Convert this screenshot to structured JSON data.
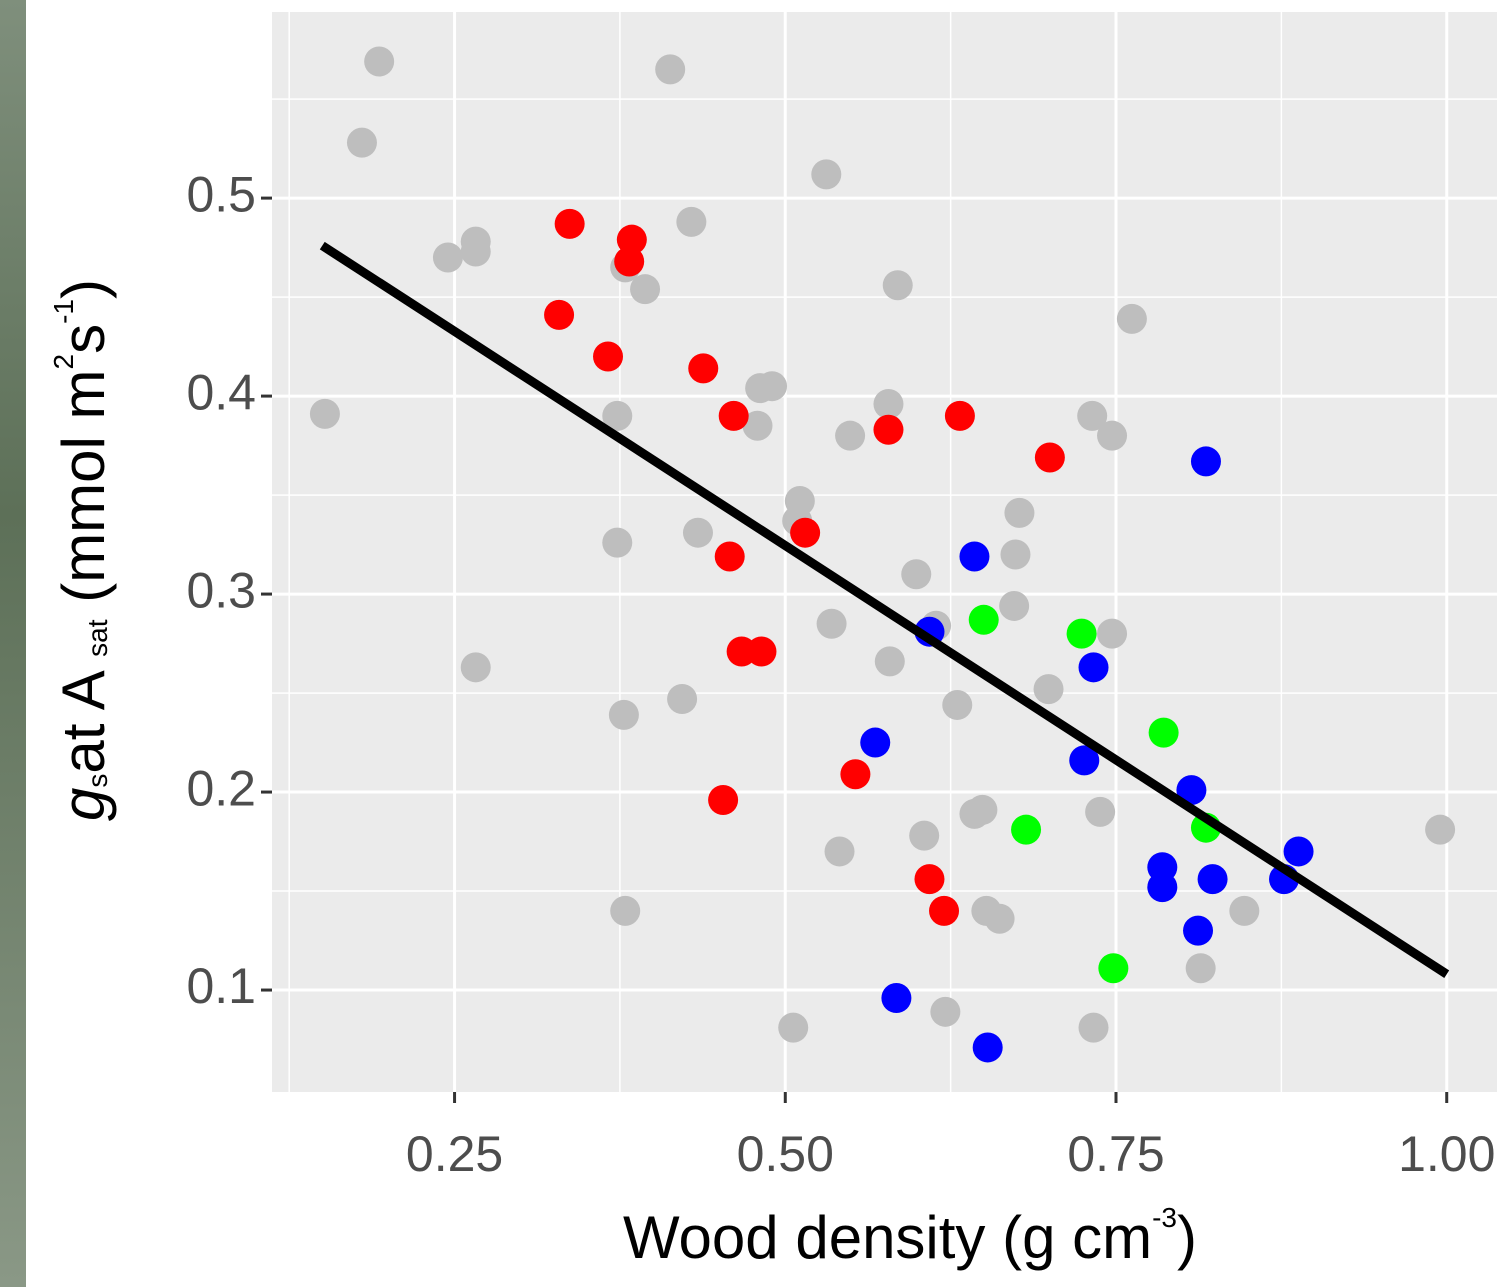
{
  "chart_data": {
    "type": "scatter",
    "xlabel": [
      {
        "text": "Wood density (g cm"
      },
      {
        "text": "-3",
        "style": "sup"
      },
      {
        "text": ")"
      }
    ],
    "ylabel": [
      {
        "text": "g",
        "style": "italic"
      },
      {
        "text": "s",
        "style": "sub"
      },
      {
        "text": "at A "
      },
      {
        "text": "sat",
        "style": "sub"
      },
      {
        "text": " (mmol m"
      },
      {
        "text": "2",
        "style": "sup"
      },
      {
        "text": "s"
      },
      {
        "text": "-1",
        "style": "sup"
      },
      {
        "text": ")"
      }
    ],
    "xlim": [
      0.112,
      1.038
    ],
    "ylim": [
      0.0485,
      0.594
    ],
    "xticks": [
      {
        "value": 0.25,
        "label": "0.25"
      },
      {
        "value": 0.5,
        "label": "0.50"
      },
      {
        "value": 0.75,
        "label": "0.75"
      },
      {
        "value": 1.0,
        "label": "1.00"
      }
    ],
    "yticks": [
      0.1,
      0.2,
      0.3,
      0.4,
      0.5
    ],
    "x_minor_ticks": [
      0.125,
      0.375,
      0.625,
      0.875
    ],
    "y_minor_ticks": [
      0.15,
      0.25,
      0.35,
      0.45,
      0.55
    ],
    "grid": true,
    "series": [
      {
        "color": "#bebebe",
        "x": [
          0.193,
          0.18,
          0.413,
          0.531,
          0.429,
          0.245,
          0.266,
          0.266,
          0.379,
          0.394,
          0.585,
          0.762,
          0.152,
          0.373,
          0.481,
          0.49,
          0.479,
          0.578,
          0.549,
          0.732,
          0.747,
          0.511,
          0.509,
          0.677,
          0.674,
          0.373,
          0.434,
          0.599,
          0.614,
          0.535,
          0.673,
          0.747,
          0.266,
          0.579,
          0.699,
          0.422,
          0.63,
          0.378,
          0.643,
          0.649,
          0.738,
          0.605,
          0.541,
          0.995,
          0.379,
          0.652,
          0.662,
          0.847,
          0.814,
          0.621,
          0.506,
          0.733
        ],
        "values": [
          0.569,
          0.528,
          0.565,
          0.512,
          0.488,
          0.47,
          0.478,
          0.473,
          0.465,
          0.454,
          0.456,
          0.439,
          0.391,
          0.39,
          0.404,
          0.405,
          0.385,
          0.396,
          0.38,
          0.39,
          0.38,
          0.347,
          0.337,
          0.341,
          0.32,
          0.326,
          0.331,
          0.31,
          0.284,
          0.285,
          0.294,
          0.28,
          0.263,
          0.266,
          0.252,
          0.247,
          0.244,
          0.239,
          0.189,
          0.191,
          0.19,
          0.178,
          0.17,
          0.181,
          0.14,
          0.14,
          0.136,
          0.14,
          0.111,
          0.089,
          0.081,
          0.081
        ]
      },
      {
        "color": "#ff0000",
        "x": [
          0.337,
          0.384,
          0.382,
          0.329,
          0.366,
          0.438,
          0.461,
          0.578,
          0.632,
          0.7,
          0.515,
          0.458,
          0.467,
          0.482,
          0.553,
          0.453,
          0.609,
          0.62
        ],
        "values": [
          0.487,
          0.479,
          0.468,
          0.441,
          0.42,
          0.414,
          0.39,
          0.383,
          0.39,
          0.369,
          0.331,
          0.319,
          0.271,
          0.271,
          0.209,
          0.196,
          0.156,
          0.14
        ]
      },
      {
        "color": "#0000ff",
        "x": [
          0.818,
          0.643,
          0.609,
          0.733,
          0.568,
          0.726,
          0.807,
          0.785,
          0.785,
          0.823,
          0.877,
          0.888,
          0.812,
          0.584,
          0.653
        ],
        "values": [
          0.367,
          0.319,
          0.281,
          0.263,
          0.225,
          0.216,
          0.201,
          0.162,
          0.152,
          0.156,
          0.156,
          0.17,
          0.13,
          0.096,
          0.071
        ]
      },
      {
        "color": "#00ff00",
        "x": [
          0.65,
          0.724,
          0.786,
          0.682,
          0.818,
          0.748
        ],
        "values": [
          0.287,
          0.28,
          0.23,
          0.181,
          0.182,
          0.111
        ]
      }
    ],
    "trend_line": {
      "x": [
        0.15,
        1.0
      ],
      "values": [
        0.476,
        0.108
      ],
      "color": "#000000"
    }
  }
}
